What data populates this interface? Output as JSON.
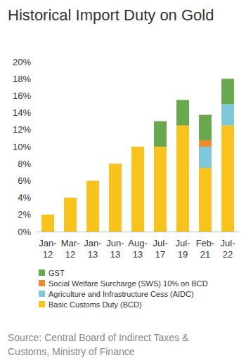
{
  "chart_data": {
    "type": "bar",
    "title": "Historical Import Duty on Gold",
    "source": "Source: Central Board of Indirect Taxes & Customs, Ministry of Finance",
    "categories": [
      "Jan-12",
      "Mar-12",
      "Jan-13",
      "Jun-13",
      "Aug-13",
      "Jul-17",
      "Jul-19",
      "Feb-21",
      "Jul-22"
    ],
    "series": [
      {
        "name": "Basic Customs Duty (BCD)",
        "color": "#f7c31c",
        "values": [
          2,
          4,
          6,
          8,
          10,
          10,
          12.5,
          7.5,
          12.5
        ]
      },
      {
        "name": "Agriculture and Infrastructure Cess (AIDC)",
        "color": "#7ec8da",
        "values": [
          null,
          null,
          null,
          null,
          null,
          null,
          null,
          2.5,
          2.5
        ]
      },
      {
        "name": "Social Welfare Surcharge (SWS) 10% on BCD",
        "color": "#f28a30",
        "values": [
          null,
          null,
          null,
          null,
          null,
          null,
          null,
          0.75,
          null
        ]
      },
      {
        "name": "GST",
        "color": "#6aa84f",
        "values": [
          null,
          null,
          null,
          null,
          null,
          3,
          3,
          3,
          3
        ]
      }
    ],
    "ylim": [
      0,
      20
    ],
    "yticks": [
      {
        "value": 0,
        "label": "0%"
      },
      {
        "value": 2,
        "label": "2%"
      },
      {
        "value": 4,
        "label": "4%"
      },
      {
        "value": 6,
        "label": "6%"
      },
      {
        "value": 8,
        "label": "8%"
      },
      {
        "value": 10,
        "label": "10%"
      },
      {
        "value": 12,
        "label": "12%"
      },
      {
        "value": 14,
        "label": "14%"
      },
      {
        "value": 16,
        "label": "16%"
      },
      {
        "value": 18,
        "label": "18%"
      },
      {
        "value": 20,
        "label": "20%"
      }
    ],
    "stacked": true,
    "grid": false,
    "legend": "bottom-left",
    "data_labels": false
  }
}
